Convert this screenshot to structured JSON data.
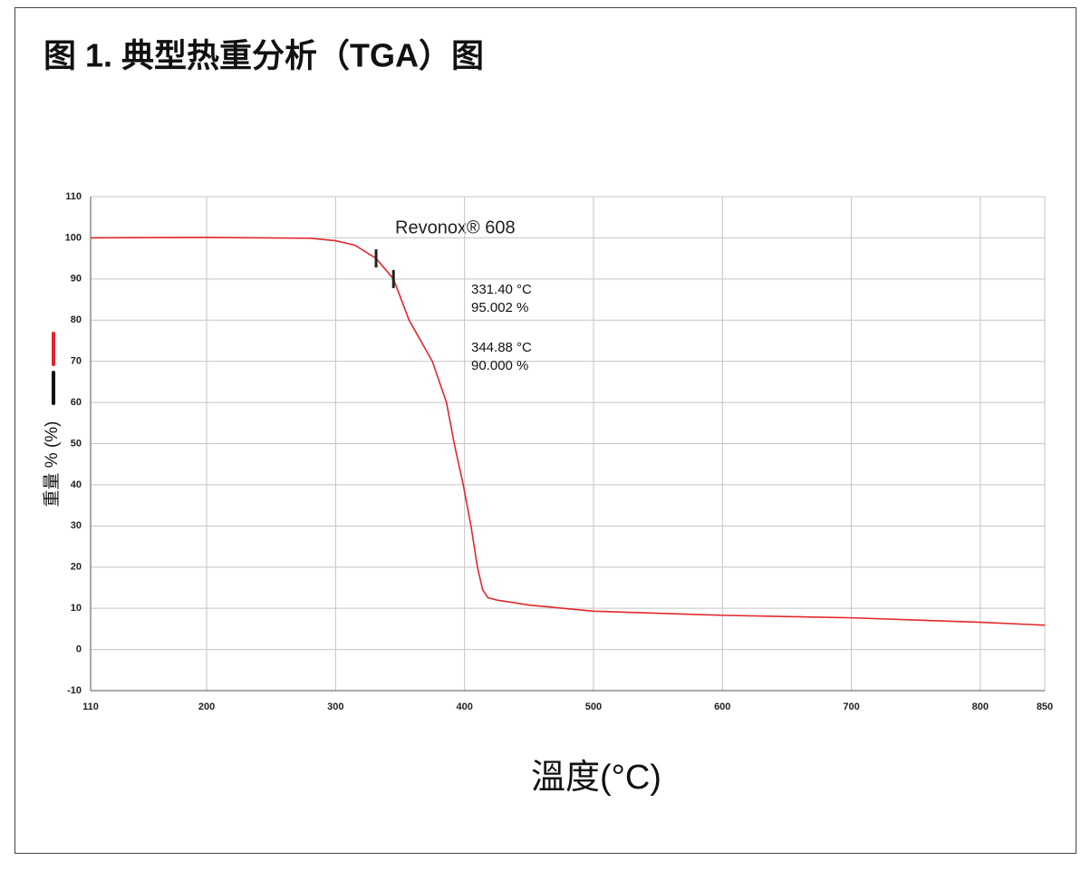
{
  "chart_data": {
    "type": "line",
    "title": "图 1. 典型热重分析（TGA）图",
    "x_label": "溫度(°C)",
    "y_label": "重量 % (%)",
    "series_label": "Revonox® 608",
    "xlim": [
      110,
      850
    ],
    "xticks": [
      110,
      200,
      300,
      400,
      500,
      600,
      700,
      800,
      850
    ],
    "ylim": [
      -10,
      110
    ],
    "yticks": [
      -10,
      0,
      10,
      20,
      30,
      40,
      50,
      60,
      70,
      80,
      90,
      100,
      110
    ],
    "grid": true,
    "series": [
      {
        "name": "Revonox® 608",
        "color": "#e3262b",
        "x": [
          110,
          200,
          280,
          300,
          315,
          331.4,
          344.88,
          357,
          375,
          386,
          392,
          399,
          405,
          410,
          414,
          418,
          425,
          450,
          500,
          600,
          700,
          800,
          850
        ],
        "values": [
          100,
          100.1,
          99.9,
          99.3,
          98.2,
          95.0,
          90.0,
          80,
          70,
          60,
          50,
          40,
          30,
          20,
          14.5,
          12.6,
          12,
          10.8,
          9.3,
          8.3,
          7.7,
          6.6,
          5.9
        ]
      }
    ],
    "markers": [
      {
        "x": 331.4,
        "y": 95.002,
        "labels": [
          "331.40 °C",
          "95.002 %"
        ]
      },
      {
        "x": 344.88,
        "y": 90.0,
        "labels": [
          "344.88 °C",
          "90.000 %"
        ]
      }
    ]
  }
}
